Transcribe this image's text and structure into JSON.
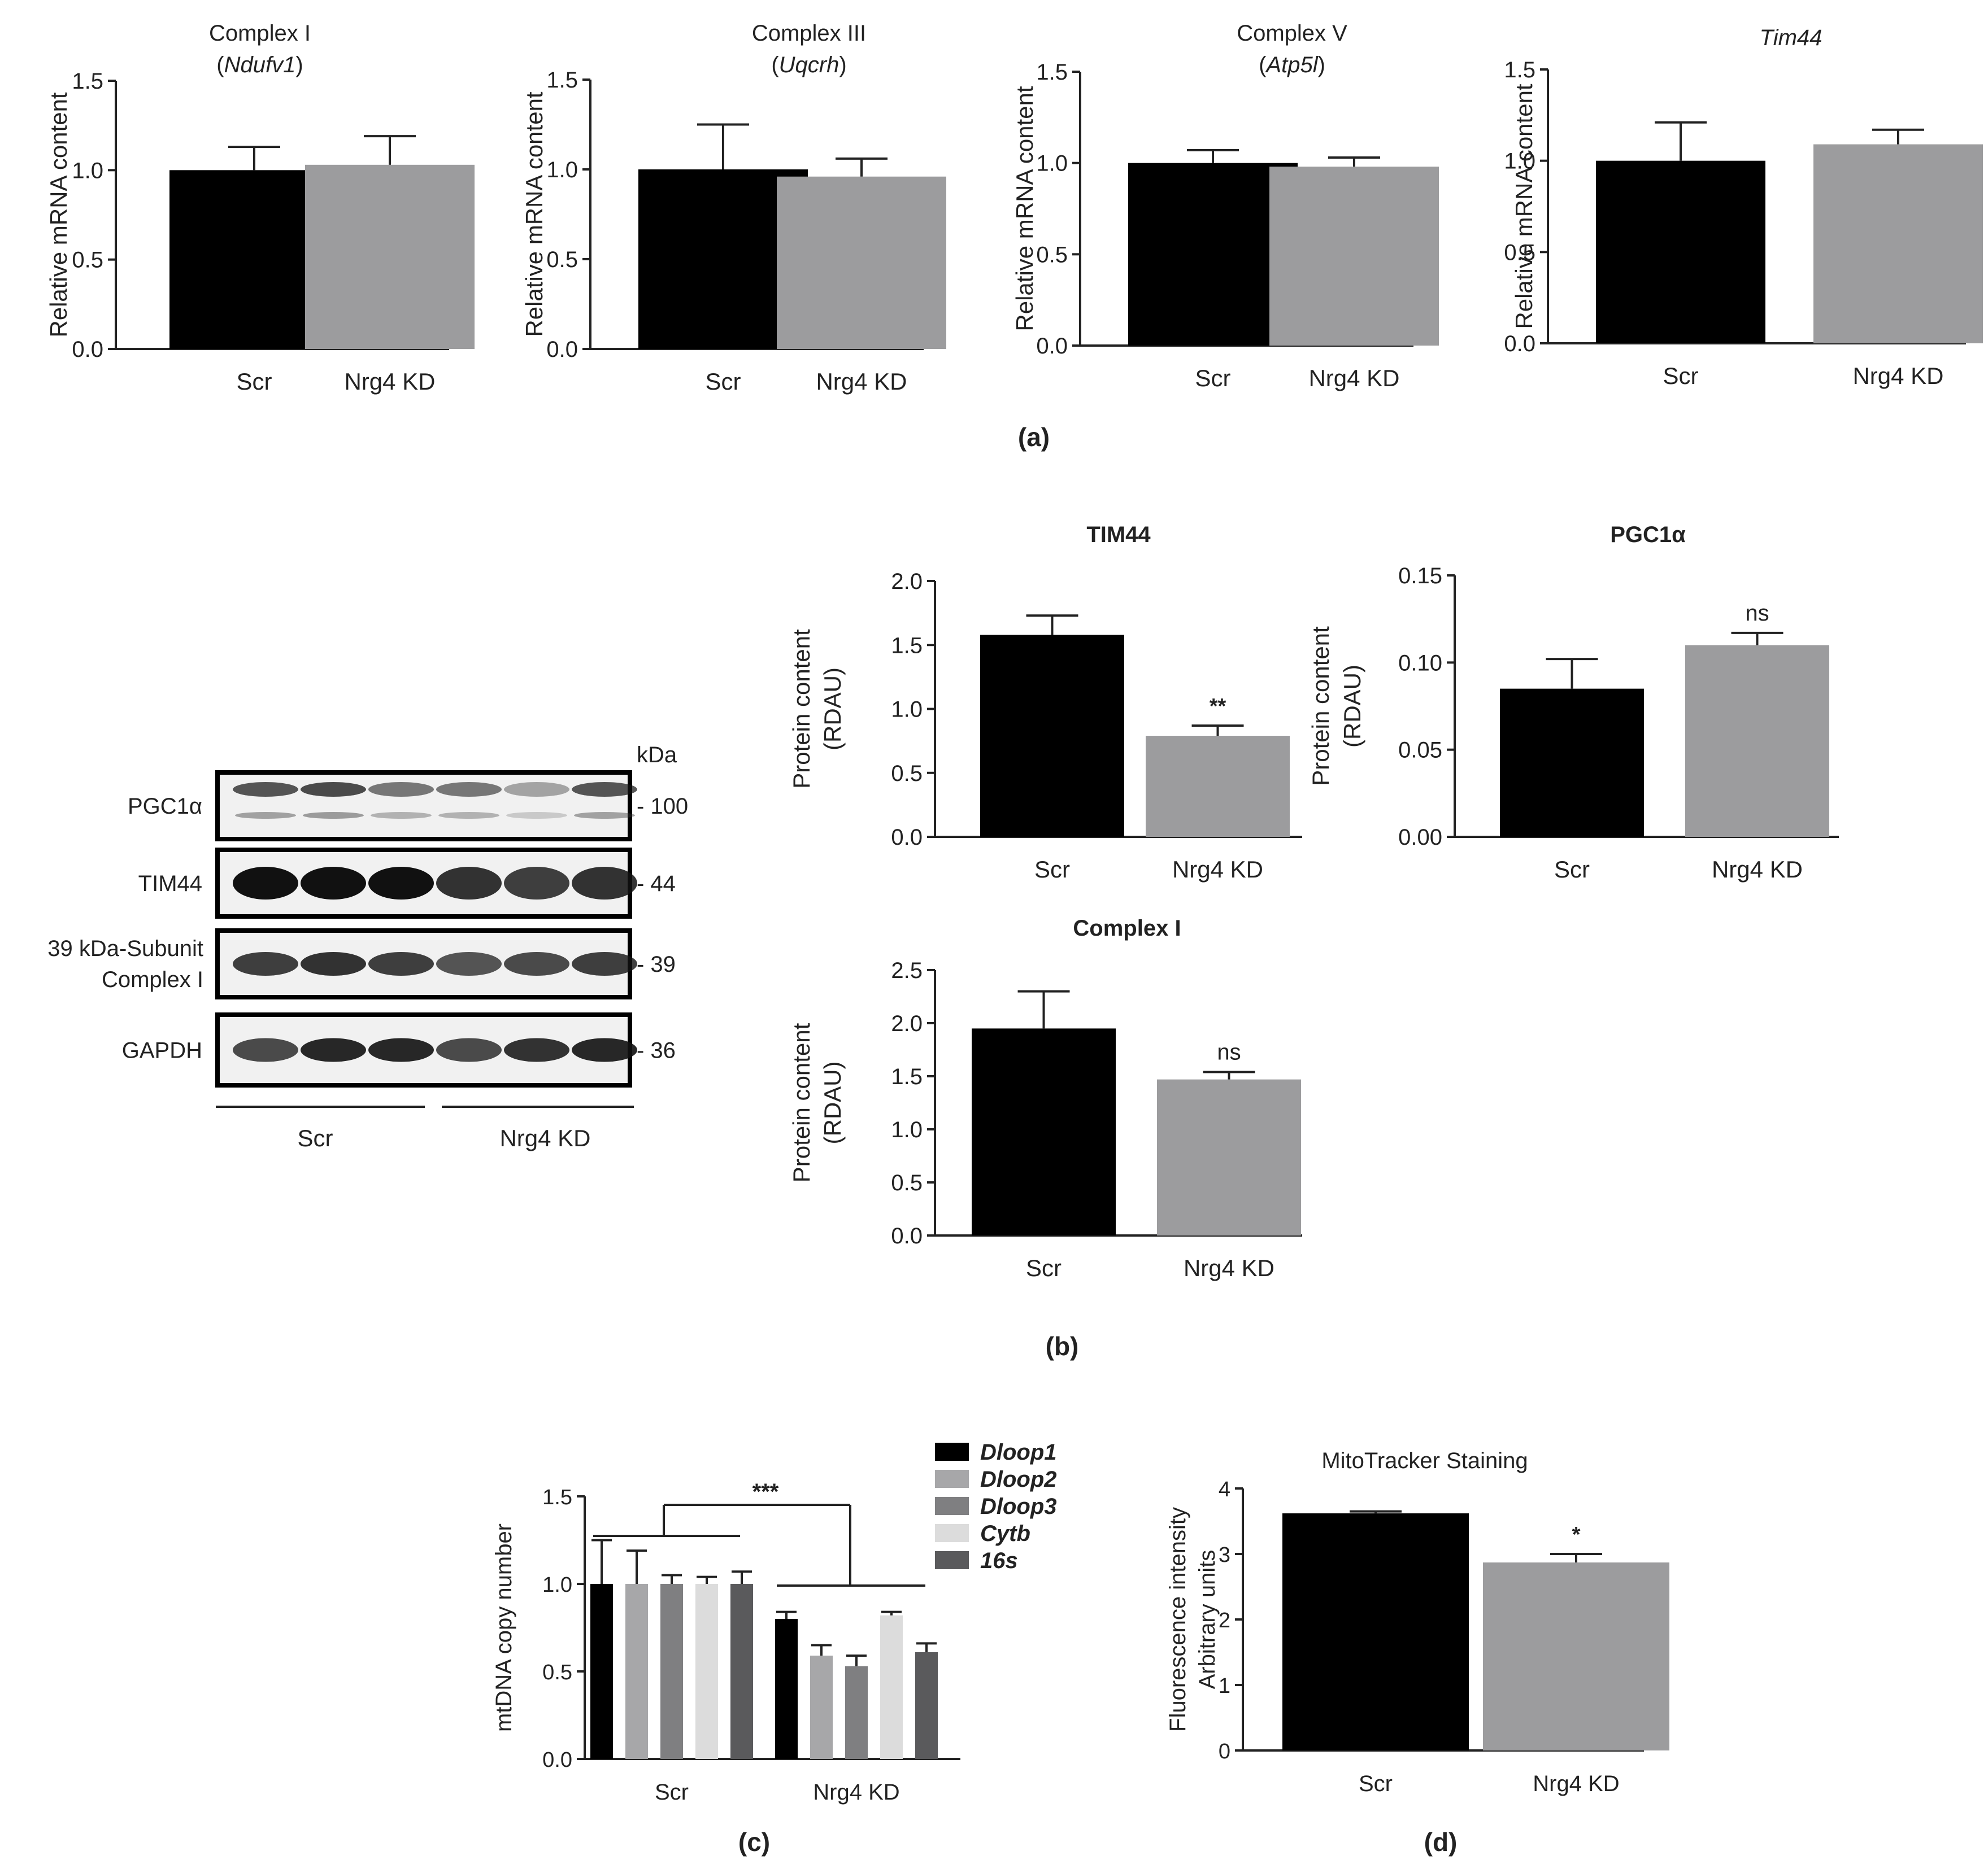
{
  "figure": {
    "panel_labels": [
      "(a)",
      "(b)",
      "(c)",
      "(d)"
    ],
    "colors": {
      "scr": "#000000",
      "kd": "#9c9c9e",
      "axis": "#222222"
    }
  },
  "chart_data": [
    {
      "id": "a1",
      "type": "bar",
      "title": "Complex I",
      "subtitle": "Ndufv1",
      "subtitle_italic": true,
      "ylabel": "Relative mRNA content",
      "categories": [
        "Scr",
        "Nrg4 KD"
      ],
      "values": [
        1.0,
        1.03
      ],
      "errors": [
        0.13,
        0.16
      ],
      "ylim": [
        0,
        1.5
      ],
      "yticks": [
        "0.0",
        "0.5",
        "1.0",
        "1.5"
      ],
      "significance": [
        "",
        ""
      ]
    },
    {
      "id": "a2",
      "type": "bar",
      "title": "Complex III",
      "subtitle": "Uqcrh",
      "subtitle_italic": true,
      "ylabel": "Relative mRNA content",
      "categories": [
        "Scr",
        "Nrg4 KD"
      ],
      "values": [
        1.0,
        0.96
      ],
      "errors": [
        0.25,
        0.1
      ],
      "ylim": [
        0,
        1.5
      ],
      "yticks": [
        "0.0",
        "0.5",
        "1.0",
        "1.5"
      ],
      "significance": [
        "",
        ""
      ]
    },
    {
      "id": "a3",
      "type": "bar",
      "title": "Complex V",
      "subtitle": "Atp5l",
      "subtitle_italic": true,
      "ylabel": "Relative mRNA content",
      "categories": [
        "Scr",
        "Nrg4 KD"
      ],
      "values": [
        1.0,
        0.98
      ],
      "errors": [
        0.07,
        0.05
      ],
      "ylim": [
        0,
        1.5
      ],
      "yticks": [
        "0.0",
        "0.5",
        "1.0",
        "1.5"
      ],
      "significance": [
        "",
        ""
      ]
    },
    {
      "id": "a4",
      "type": "bar",
      "title": "Tim44",
      "title_italic": true,
      "subtitle": "",
      "ylabel": "Relative mRNA content",
      "categories": [
        "Scr",
        "Nrg4 KD"
      ],
      "values": [
        1.0,
        1.09
      ],
      "errors": [
        0.21,
        0.08
      ],
      "ylim": [
        0,
        1.5
      ],
      "yticks": [
        "0.0",
        "0.5",
        "1.0",
        "1.5"
      ],
      "significance": [
        "",
        ""
      ]
    },
    {
      "id": "b1",
      "type": "bar",
      "title_bold": true,
      "title": "TIM44",
      "subtitle": "",
      "ylabel": "Protein content",
      "ylabel2": "(RDAU)",
      "categories": [
        "Scr",
        "Nrg4 KD"
      ],
      "values": [
        1.58,
        0.79
      ],
      "errors": [
        0.15,
        0.08
      ],
      "ylim": [
        0,
        2.0
      ],
      "yticks": [
        "0.0",
        "0.5",
        "1.0",
        "1.5",
        "2.0"
      ],
      "significance": [
        "",
        "**"
      ]
    },
    {
      "id": "b2",
      "type": "bar",
      "title_bold": true,
      "title": "PGC1α",
      "subtitle": "",
      "ylabel": "Protein content",
      "ylabel2": "(RDAU)",
      "categories": [
        "Scr",
        "Nrg4 KD"
      ],
      "values": [
        0.085,
        0.11
      ],
      "errors": [
        0.017,
        0.007
      ],
      "ylim": [
        0,
        0.15
      ],
      "yticks": [
        "0.00",
        "0.05",
        "0.10",
        "0.15"
      ],
      "significance": [
        "",
        "ns"
      ]
    },
    {
      "id": "b3",
      "type": "bar",
      "title_bold": true,
      "title": "Complex I",
      "subtitle": "",
      "ylabel": "Protein content",
      "ylabel2": "(RDAU)",
      "categories": [
        "Scr",
        "Nrg4 KD"
      ],
      "values": [
        1.95,
        1.47
      ],
      "errors": [
        0.35,
        0.07
      ],
      "ylim": [
        0,
        2.5
      ],
      "yticks": [
        "0.0",
        "0.5",
        "1.0",
        "1.5",
        "2.0",
        "2.5"
      ],
      "significance": [
        "",
        "ns"
      ]
    },
    {
      "id": "c",
      "type": "bar",
      "title": "",
      "subtitle": "",
      "ylabel": "mtDNA copy number",
      "categories": [
        "Scr",
        "Nrg4 KD"
      ],
      "series": [
        {
          "name": "Dloop1",
          "color": "#000000",
          "values": [
            1.0,
            0.8
          ],
          "errors": [
            0.25,
            0.04
          ]
        },
        {
          "name": "Dloop2",
          "color": "#a7a7a9",
          "values": [
            1.0,
            0.59
          ],
          "errors": [
            0.19,
            0.06
          ]
        },
        {
          "name": "Dloop3",
          "color": "#7f7f81",
          "values": [
            1.0,
            0.53
          ],
          "errors": [
            0.05,
            0.06
          ]
        },
        {
          "name": "Cytb",
          "color": "#dcdcdc",
          "values": [
            1.0,
            0.82
          ],
          "errors": [
            0.04,
            0.02
          ]
        },
        {
          "name": "16s",
          "color": "#5a5a5c",
          "values": [
            1.0,
            0.61
          ],
          "errors": [
            0.07,
            0.05
          ]
        }
      ],
      "ylim": [
        0,
        1.5
      ],
      "yticks": [
        "0.0",
        "0.5",
        "1.0",
        "1.5"
      ],
      "group_significance": "***",
      "legend_position": "top-right"
    },
    {
      "id": "d",
      "type": "bar",
      "title": "MitoTracker Staining",
      "subtitle": "",
      "ylabel": "Fluorescence intensity",
      "ylabel2": "Arbitrary units",
      "categories": [
        "Scr",
        "Nrg4 KD"
      ],
      "values": [
        3.62,
        2.87
      ],
      "errors": [
        0.03,
        0.13
      ],
      "ylim": [
        0,
        4
      ],
      "yticks": [
        "0",
        "1",
        "2",
        "3",
        "4"
      ],
      "significance": [
        "",
        "*"
      ]
    }
  ],
  "blot": {
    "kda_header": "kDa",
    "rows": [
      {
        "label": "PGC1α",
        "label_line2": "",
        "kda": "- 100"
      },
      {
        "label": "TIM44",
        "label_line2": "",
        "kda": "- 44"
      },
      {
        "label": "39 kDa-Subunit",
        "label_line2": "Complex I",
        "kda": "- 39"
      },
      {
        "label": "GAPDH",
        "label_line2": "",
        "kda": "- 36"
      }
    ],
    "intensity": [
      [
        0.7,
        0.75,
        0.55,
        0.55,
        0.35,
        0.7
      ],
      [
        1.0,
        1.0,
        1.0,
        0.85,
        0.8,
        0.85
      ],
      [
        0.8,
        0.85,
        0.8,
        0.7,
        0.75,
        0.8
      ],
      [
        0.75,
        0.9,
        0.9,
        0.75,
        0.85,
        0.9
      ]
    ],
    "groups": [
      "Scr",
      "Nrg4 KD"
    ]
  }
}
